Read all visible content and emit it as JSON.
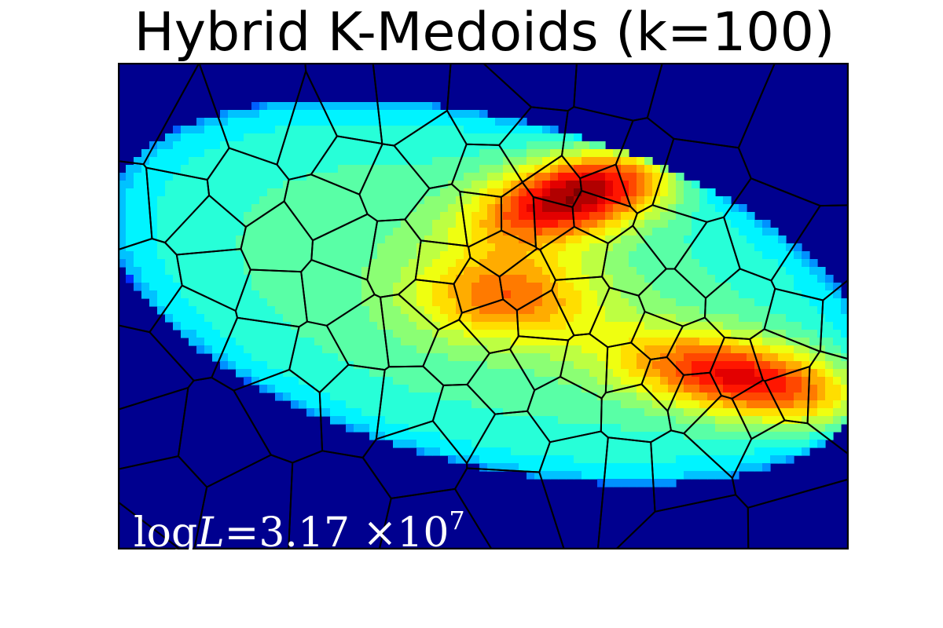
{
  "title": "Hybrid K-Medoids (k=100)",
  "annotation": {
    "prefix": "log",
    "var": "L",
    "eq": "=",
    "mantissa": "3.17",
    "times": "×",
    "base": "10",
    "exponent": "7"
  },
  "chart_data": {
    "type": "heatmap",
    "title": "Hybrid K-Medoids (k=100)",
    "xlabel": "",
    "ylabel": "",
    "colormap": "jet",
    "background_color": "#00008f",
    "overlay": "voronoi-cell-boundaries",
    "k": 100,
    "log_likelihood": 31700000,
    "annotation_text": "logL = 3.17 ×10^7",
    "ticks": "none",
    "grid": false,
    "density_peaks": [
      {
        "cx": 0.63,
        "cy": 0.27,
        "sx": 0.13,
        "sy": 0.07,
        "rot": -28,
        "w": 1.0
      },
      {
        "cx": 0.86,
        "cy": 0.65,
        "sx": 0.16,
        "sy": 0.07,
        "rot": 18,
        "w": 0.85
      },
      {
        "cx": 0.53,
        "cy": 0.48,
        "sx": 0.11,
        "sy": 0.08,
        "rot": 0,
        "w": 0.55
      }
    ],
    "envelope": {
      "cx": 0.51,
      "cy": 0.47,
      "rx": 0.56,
      "ry": 0.34,
      "rot": 27,
      "level": 0.4
    }
  }
}
